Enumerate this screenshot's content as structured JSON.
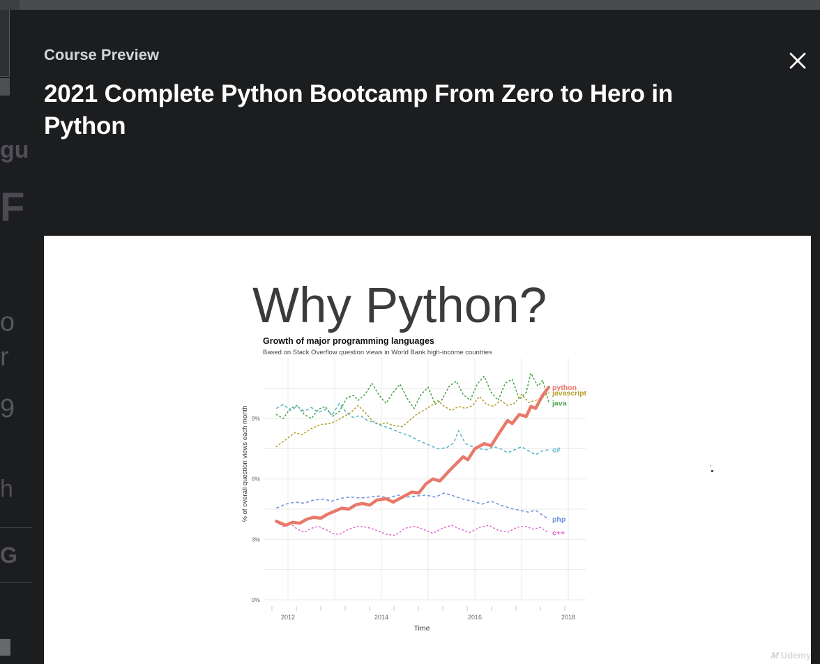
{
  "modal": {
    "eyebrow": "Course Preview",
    "title": "2021 Complete Python Bootcamp From Zero to Hero in Python"
  },
  "slide": {
    "heading": "Why Python?",
    "watermark": "Udemy"
  },
  "background": {
    "fragments": [
      {
        "text": "gu"
      },
      {
        "text": "F"
      },
      {
        "text": "o"
      },
      {
        "text": "r"
      },
      {
        "text": "9"
      },
      {
        "text": "h"
      },
      {
        "text": "G"
      }
    ]
  },
  "chart_data": {
    "type": "line",
    "title": "Growth of major programming languages",
    "subtitle": "Based on Stack Overflow question views in World Bank high-income countries",
    "xlabel": "Time",
    "ylabel": "% of overall question views each month",
    "x_ticks": [
      2012,
      2014,
      2016,
      2018
    ],
    "y_ticks": [
      "0%",
      "3%",
      "6%",
      "9%"
    ],
    "xlim": [
      2011.5,
      2018.5
    ],
    "ylim": [
      0,
      12
    ],
    "grid": true,
    "legend_position": "right-of-line-ends",
    "series": [
      {
        "name": "java",
        "color": "#4da44f",
        "style": "dotted",
        "width": 1.6,
        "label_y": 9.76,
        "points": [
          [
            2011.75,
            9.2
          ],
          [
            2011.9,
            9.0
          ],
          [
            2012.05,
            9.5
          ],
          [
            2012.2,
            9.65
          ],
          [
            2012.35,
            9.2
          ],
          [
            2012.5,
            9.0
          ],
          [
            2012.65,
            9.45
          ],
          [
            2012.8,
            9.6
          ],
          [
            2012.95,
            9.1
          ],
          [
            2013.1,
            9.35
          ],
          [
            2013.25,
            10.0
          ],
          [
            2013.4,
            10.15
          ],
          [
            2013.5,
            9.9
          ],
          [
            2013.65,
            10.2
          ],
          [
            2013.8,
            10.75
          ],
          [
            2013.95,
            10.15
          ],
          [
            2014.1,
            9.75
          ],
          [
            2014.25,
            10.3
          ],
          [
            2014.4,
            10.7
          ],
          [
            2014.55,
            10.0
          ],
          [
            2014.7,
            9.5
          ],
          [
            2014.85,
            10.2
          ],
          [
            2015.0,
            10.55
          ],
          [
            2015.15,
            9.7
          ],
          [
            2015.3,
            9.95
          ],
          [
            2015.45,
            10.6
          ],
          [
            2015.6,
            10.85
          ],
          [
            2015.75,
            10.2
          ],
          [
            2015.9,
            9.9
          ],
          [
            2016.05,
            10.7
          ],
          [
            2016.2,
            11.1
          ],
          [
            2016.35,
            10.3
          ],
          [
            2016.5,
            9.9
          ],
          [
            2016.65,
            10.75
          ],
          [
            2016.8,
            10.95
          ],
          [
            2016.95,
            9.95
          ],
          [
            2017.1,
            10.3
          ],
          [
            2017.2,
            11.25
          ],
          [
            2017.35,
            10.6
          ],
          [
            2017.45,
            10.9
          ],
          [
            2017.55,
            10.1
          ],
          [
            2017.58,
            9.8
          ]
        ]
      },
      {
        "name": "javascript",
        "color": "#b5a02a",
        "style": "dotted",
        "width": 1.6,
        "label_y": 10.27,
        "points": [
          [
            2011.75,
            7.6
          ],
          [
            2011.95,
            7.95
          ],
          [
            2012.15,
            8.3
          ],
          [
            2012.3,
            8.2
          ],
          [
            2012.5,
            8.5
          ],
          [
            2012.7,
            8.7
          ],
          [
            2012.9,
            8.75
          ],
          [
            2013.05,
            8.9
          ],
          [
            2013.2,
            9.1
          ],
          [
            2013.35,
            9.3
          ],
          [
            2013.5,
            9.65
          ],
          [
            2013.65,
            9.3
          ],
          [
            2013.8,
            8.9
          ],
          [
            2013.95,
            8.7
          ],
          [
            2014.1,
            8.8
          ],
          [
            2014.25,
            8.65
          ],
          [
            2014.45,
            8.6
          ],
          [
            2014.6,
            8.9
          ],
          [
            2014.75,
            9.2
          ],
          [
            2014.9,
            9.4
          ],
          [
            2015.05,
            9.6
          ],
          [
            2015.2,
            9.9
          ],
          [
            2015.35,
            9.6
          ],
          [
            2015.5,
            9.4
          ],
          [
            2015.65,
            9.6
          ],
          [
            2015.8,
            9.5
          ],
          [
            2015.95,
            9.65
          ],
          [
            2016.1,
            10.1
          ],
          [
            2016.25,
            9.7
          ],
          [
            2016.4,
            9.6
          ],
          [
            2016.55,
            9.9
          ],
          [
            2016.7,
            9.65
          ],
          [
            2016.85,
            9.75
          ],
          [
            2017.0,
            10.2
          ],
          [
            2017.15,
            9.8
          ],
          [
            2017.3,
            9.9
          ],
          [
            2017.45,
            10.05
          ],
          [
            2017.58,
            10.28
          ]
        ]
      },
      {
        "name": "c#",
        "color": "#52b5c5",
        "style": "dashed",
        "width": 1.5,
        "label_y": 7.45,
        "points": [
          [
            2011.75,
            9.5
          ],
          [
            2011.9,
            9.7
          ],
          [
            2012.05,
            9.4
          ],
          [
            2012.2,
            9.6
          ],
          [
            2012.35,
            9.35
          ],
          [
            2012.5,
            9.55
          ],
          [
            2012.65,
            9.3
          ],
          [
            2012.8,
            9.45
          ],
          [
            2012.95,
            9.2
          ],
          [
            2013.1,
            9.75
          ],
          [
            2013.25,
            9.3
          ],
          [
            2013.4,
            9.05
          ],
          [
            2013.55,
            9.15
          ],
          [
            2013.7,
            8.9
          ],
          [
            2013.85,
            8.8
          ],
          [
            2014.0,
            8.65
          ],
          [
            2014.2,
            8.5
          ],
          [
            2014.4,
            8.3
          ],
          [
            2014.6,
            8.15
          ],
          [
            2014.8,
            7.9
          ],
          [
            2015.0,
            7.7
          ],
          [
            2015.2,
            7.5
          ],
          [
            2015.4,
            7.55
          ],
          [
            2015.55,
            7.8
          ],
          [
            2015.65,
            8.4
          ],
          [
            2015.8,
            7.75
          ],
          [
            2015.95,
            7.6
          ],
          [
            2016.1,
            7.5
          ],
          [
            2016.25,
            7.45
          ],
          [
            2016.4,
            7.6
          ],
          [
            2016.55,
            7.5
          ],
          [
            2016.7,
            7.3
          ],
          [
            2016.85,
            7.45
          ],
          [
            2017.0,
            7.6
          ],
          [
            2017.15,
            7.4
          ],
          [
            2017.3,
            7.2
          ],
          [
            2017.45,
            7.4
          ],
          [
            2017.58,
            7.45
          ]
        ]
      },
      {
        "name": "php",
        "color": "#6b8fdd",
        "style": "dashed",
        "width": 1.5,
        "label_y": 4.0,
        "points": [
          [
            2011.75,
            4.55
          ],
          [
            2011.95,
            4.75
          ],
          [
            2012.15,
            4.85
          ],
          [
            2012.35,
            4.8
          ],
          [
            2012.55,
            4.95
          ],
          [
            2012.75,
            5.0
          ],
          [
            2012.95,
            4.9
          ],
          [
            2013.15,
            5.05
          ],
          [
            2013.35,
            5.1
          ],
          [
            2013.55,
            5.05
          ],
          [
            2013.75,
            5.1
          ],
          [
            2013.95,
            5.15
          ],
          [
            2014.15,
            5.05
          ],
          [
            2014.35,
            5.2
          ],
          [
            2014.55,
            5.1
          ],
          [
            2014.75,
            5.15
          ],
          [
            2014.95,
            5.2
          ],
          [
            2015.15,
            5.1
          ],
          [
            2015.35,
            5.3
          ],
          [
            2015.55,
            5.15
          ],
          [
            2015.75,
            5.0
          ],
          [
            2015.95,
            4.9
          ],
          [
            2016.15,
            4.75
          ],
          [
            2016.35,
            4.9
          ],
          [
            2016.55,
            4.7
          ],
          [
            2016.75,
            4.55
          ],
          [
            2016.95,
            4.45
          ],
          [
            2017.15,
            4.35
          ],
          [
            2017.3,
            4.45
          ],
          [
            2017.45,
            4.2
          ],
          [
            2017.58,
            4.0
          ]
        ]
      },
      {
        "name": "c++",
        "color": "#e263cd",
        "style": "dotted",
        "width": 1.5,
        "label_y": 3.32,
        "points": [
          [
            2011.75,
            3.85
          ],
          [
            2011.9,
            3.65
          ],
          [
            2012.05,
            3.8
          ],
          [
            2012.2,
            3.5
          ],
          [
            2012.35,
            3.35
          ],
          [
            2012.5,
            3.55
          ],
          [
            2012.65,
            3.65
          ],
          [
            2012.8,
            3.5
          ],
          [
            2012.95,
            3.3
          ],
          [
            2013.1,
            3.25
          ],
          [
            2013.3,
            3.5
          ],
          [
            2013.5,
            3.65
          ],
          [
            2013.7,
            3.6
          ],
          [
            2013.9,
            3.45
          ],
          [
            2014.1,
            3.25
          ],
          [
            2014.3,
            3.2
          ],
          [
            2014.5,
            3.55
          ],
          [
            2014.7,
            3.65
          ],
          [
            2014.9,
            3.5
          ],
          [
            2015.1,
            3.3
          ],
          [
            2015.3,
            3.55
          ],
          [
            2015.5,
            3.7
          ],
          [
            2015.7,
            3.5
          ],
          [
            2015.9,
            3.35
          ],
          [
            2016.1,
            3.6
          ],
          [
            2016.3,
            3.7
          ],
          [
            2016.5,
            3.45
          ],
          [
            2016.7,
            3.35
          ],
          [
            2016.9,
            3.6
          ],
          [
            2017.1,
            3.65
          ],
          [
            2017.25,
            3.5
          ],
          [
            2017.4,
            3.6
          ],
          [
            2017.5,
            3.45
          ],
          [
            2017.58,
            3.32
          ]
        ]
      },
      {
        "name": "python",
        "color": "#e8796a",
        "style": "solid",
        "width": 4.5,
        "label_y": 10.55,
        "points": [
          [
            2011.75,
            3.9
          ],
          [
            2011.95,
            3.7
          ],
          [
            2012.1,
            3.85
          ],
          [
            2012.25,
            3.8
          ],
          [
            2012.4,
            4.0
          ],
          [
            2012.55,
            4.1
          ],
          [
            2012.7,
            4.05
          ],
          [
            2012.85,
            4.25
          ],
          [
            2013.0,
            4.4
          ],
          [
            2013.15,
            4.55
          ],
          [
            2013.3,
            4.5
          ],
          [
            2013.45,
            4.72
          ],
          [
            2013.6,
            4.78
          ],
          [
            2013.75,
            4.7
          ],
          [
            2013.9,
            4.95
          ],
          [
            2014.1,
            5.02
          ],
          [
            2014.25,
            4.85
          ],
          [
            2014.45,
            5.1
          ],
          [
            2014.65,
            5.35
          ],
          [
            2014.8,
            5.3
          ],
          [
            2014.95,
            5.75
          ],
          [
            2015.1,
            6.0
          ],
          [
            2015.25,
            5.9
          ],
          [
            2015.45,
            6.4
          ],
          [
            2015.6,
            6.75
          ],
          [
            2015.75,
            7.1
          ],
          [
            2015.85,
            6.95
          ],
          [
            2016.0,
            7.5
          ],
          [
            2016.2,
            7.75
          ],
          [
            2016.35,
            7.65
          ],
          [
            2016.5,
            8.2
          ],
          [
            2016.7,
            8.9
          ],
          [
            2016.8,
            8.75
          ],
          [
            2016.95,
            9.2
          ],
          [
            2017.1,
            9.1
          ],
          [
            2017.2,
            9.6
          ],
          [
            2017.3,
            9.5
          ],
          [
            2017.45,
            10.15
          ],
          [
            2017.58,
            10.55
          ]
        ]
      }
    ]
  }
}
